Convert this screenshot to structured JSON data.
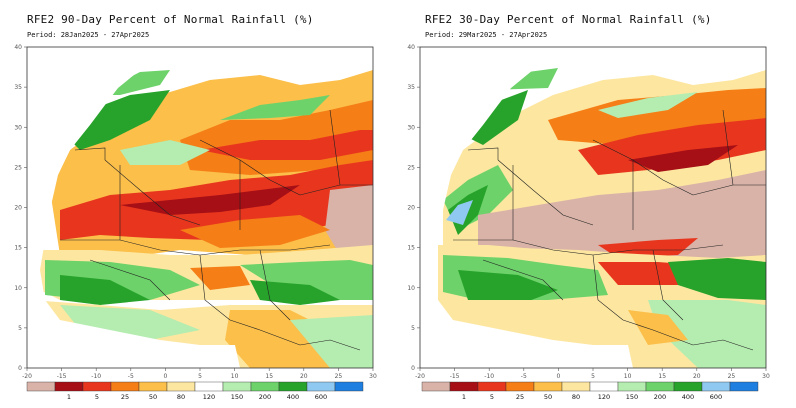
{
  "panels": [
    {
      "title": "RFE2 90-Day Percent of Normal Rainfall (%)",
      "period": "Period: 28Jan2025 - 27Apr2025"
    },
    {
      "title": "RFE2 30-Day Percent of Normal Rainfall (%)",
      "period": "Period: 29Mar2025 - 27Apr2025"
    }
  ],
  "axes": {
    "x_ticks": [
      "-20",
      "-15",
      "-10",
      "-5",
      "0",
      "5",
      "10",
      "15",
      "20",
      "25",
      "30"
    ],
    "y_ticks": [
      "0",
      "5",
      "10",
      "15",
      "20",
      "25",
      "30",
      "35",
      "40"
    ]
  },
  "colorbar": {
    "labels": [
      "1",
      "5",
      "25",
      "50",
      "80",
      "120",
      "150",
      "200",
      "400",
      "600"
    ],
    "colors": [
      "#d9b3a8",
      "#a50f15",
      "#e8361e",
      "#f57e17",
      "#fbbf4a",
      "#fde7a0",
      "#ffffff",
      "#b5ecb0",
      "#6dd26a",
      "#27a32b",
      "#8fc8f0",
      "#1e7fe0"
    ]
  }
}
